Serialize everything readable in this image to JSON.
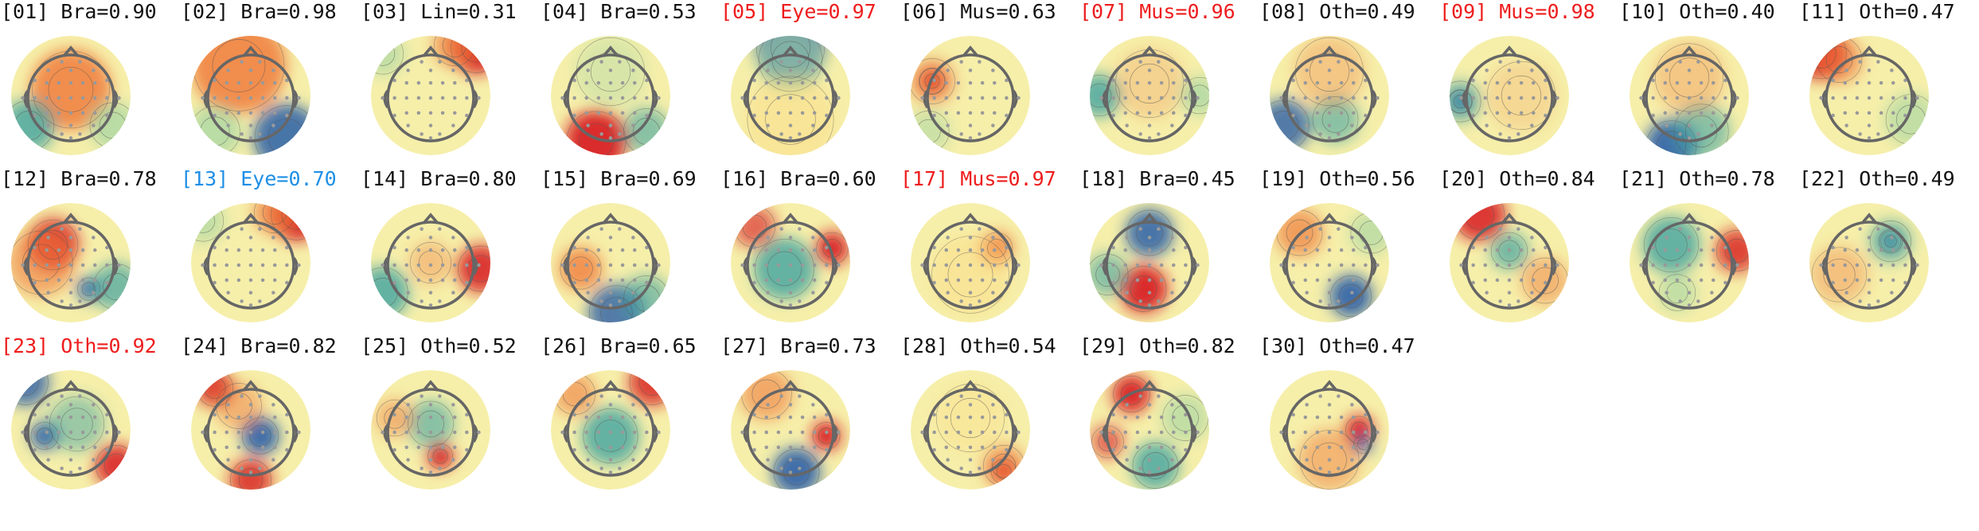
{
  "colors": {
    "normal": "#111111",
    "flagged": "#ee1c1c",
    "eye_blue": "#1f8fe6"
  },
  "components": [
    {
      "label": "[01] Bra=0.90",
      "status": "normal",
      "pattern": "center-warm"
    },
    {
      "label": "[02] Bra=0.98",
      "status": "normal",
      "pattern": "top-warm-bottom-cool"
    },
    {
      "label": "[03] Lin=0.31",
      "status": "normal",
      "pattern": "top-right-red"
    },
    {
      "label": "[04] Bra=0.53",
      "status": "normal",
      "pattern": "bottom-red"
    },
    {
      "label": "[05] Eye=0.97",
      "status": "flagged",
      "pattern": "frontal-blue"
    },
    {
      "label": "[06] Mus=0.63",
      "status": "normal",
      "pattern": "left-focal-red"
    },
    {
      "label": "[07] Mus=0.96",
      "status": "flagged",
      "pattern": "edge-cool"
    },
    {
      "label": "[08] Oth=0.49",
      "status": "normal",
      "pattern": "bottom-left-cool"
    },
    {
      "label": "[09] Mus=0.98",
      "status": "flagged",
      "pattern": "left-focal-blue"
    },
    {
      "label": "[10] Oth=0.40",
      "status": "normal",
      "pattern": "bottom-cool"
    },
    {
      "label": "[11] Oth=0.47",
      "status": "normal",
      "pattern": "top-left-red"
    },
    {
      "label": "[12] Bra=0.78",
      "status": "normal",
      "pattern": "left-red-right-blue"
    },
    {
      "label": "[13] Eye=0.70",
      "status": "eye_blue",
      "pattern": "top-right-red"
    },
    {
      "label": "[14] Bra=0.80",
      "status": "normal",
      "pattern": "right-red-left-cool"
    },
    {
      "label": "[15] Bra=0.69",
      "status": "normal",
      "pattern": "left-orange-bottom-blue"
    },
    {
      "label": "[16] Bra=0.60",
      "status": "normal",
      "pattern": "center-cool-right-red"
    },
    {
      "label": "[17] Mus=0.97",
      "status": "flagged",
      "pattern": "right-orange"
    },
    {
      "label": "[18] Bra=0.45",
      "status": "normal",
      "pattern": "top-blue-bottom-red"
    },
    {
      "label": "[19] Oth=0.56",
      "status": "normal",
      "pattern": "bottom-blue"
    },
    {
      "label": "[20] Oth=0.84",
      "status": "normal",
      "pattern": "top-red"
    },
    {
      "label": "[21] Oth=0.78",
      "status": "normal",
      "pattern": "left-cool-right-red"
    },
    {
      "label": "[22] Oth=0.49",
      "status": "normal",
      "pattern": "right-focal-blue"
    },
    {
      "label": "[23] Oth=0.92",
      "status": "flagged",
      "pattern": "left-blue-right-red"
    },
    {
      "label": "[24] Bra=0.82",
      "status": "normal",
      "pattern": "center-blue-edges-red"
    },
    {
      "label": "[25] Oth=0.52",
      "status": "normal",
      "pattern": "center-focal-red"
    },
    {
      "label": "[26] Bra=0.65",
      "status": "normal",
      "pattern": "center-cool-top-red"
    },
    {
      "label": "[27] Bra=0.73",
      "status": "normal",
      "pattern": "bottom-blue-right-red"
    },
    {
      "label": "[28] Oth=0.54",
      "status": "normal",
      "pattern": "bottom-right-red"
    },
    {
      "label": "[29] Oth=0.82",
      "status": "normal",
      "pattern": "left-red-bottom-blue"
    },
    {
      "label": "[30] Oth=0.47",
      "status": "normal",
      "pattern": "right-red-blue"
    }
  ]
}
